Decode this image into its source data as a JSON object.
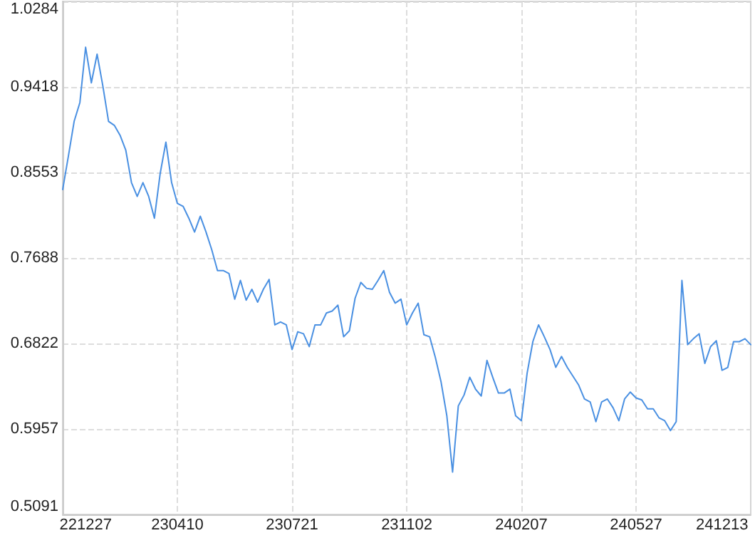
{
  "chart_data": {
    "type": "line",
    "color": "#4a90e2",
    "grid": true,
    "categories": [
      null,
      null,
      null,
      null,
      "221227",
      null,
      null,
      null,
      null,
      null,
      null,
      null,
      null,
      null,
      null,
      null,
      null,
      null,
      null,
      null,
      "230410",
      null,
      null,
      null,
      null,
      null,
      null,
      null,
      null,
      null,
      null,
      null,
      null,
      null,
      null,
      null,
      null,
      null,
      null,
      null,
      "230721",
      null,
      null,
      null,
      null,
      null,
      null,
      null,
      null,
      null,
      null,
      null,
      null,
      null,
      null,
      null,
      null,
      null,
      null,
      null,
      "231102",
      null,
      null,
      null,
      null,
      null,
      null,
      null,
      null,
      null,
      null,
      null,
      null,
      null,
      null,
      null,
      null,
      null,
      null,
      null,
      "240207",
      null,
      null,
      null,
      null,
      null,
      null,
      null,
      null,
      null,
      null,
      null,
      null,
      null,
      null,
      null,
      null,
      null,
      null,
      null,
      "240527",
      null,
      null,
      null,
      null,
      null,
      null,
      null,
      null,
      null,
      null,
      null,
      null,
      null,
      null,
      "241213",
      null,
      null,
      null,
      null,
      null
    ],
    "values": [
      0.838,
      0.872,
      0.907,
      0.926,
      0.982,
      0.946,
      0.975,
      0.943,
      0.907,
      0.903,
      0.893,
      0.878,
      0.845,
      0.831,
      0.845,
      0.831,
      0.809,
      0.854,
      0.886,
      0.845,
      0.824,
      0.821,
      0.809,
      0.795,
      0.811,
      0.795,
      0.777,
      0.756,
      0.756,
      0.753,
      0.727,
      0.746,
      0.726,
      0.737,
      0.724,
      0.737,
      0.747,
      0.701,
      0.704,
      0.701,
      0.676,
      0.694,
      0.692,
      0.679,
      0.701,
      0.701,
      0.713,
      0.715,
      0.721,
      0.689,
      0.695,
      0.728,
      0.744,
      0.738,
      0.737,
      0.746,
      0.756,
      0.734,
      0.723,
      0.727,
      0.701,
      0.713,
      0.723,
      0.691,
      0.689,
      0.668,
      0.643,
      0.609,
      0.552,
      0.619,
      0.63,
      0.648,
      0.636,
      0.629,
      0.665,
      0.648,
      0.632,
      0.632,
      0.636,
      0.609,
      0.604,
      0.652,
      0.684,
      0.701,
      0.689,
      0.676,
      0.658,
      0.669,
      0.658,
      0.649,
      0.64,
      0.626,
      0.623,
      0.603,
      0.623,
      0.626,
      0.617,
      0.604,
      0.626,
      0.633,
      0.627,
      0.625,
      0.616,
      0.616,
      0.607,
      0.604,
      0.594,
      0.603,
      0.746,
      0.681,
      0.687,
      0.692,
      0.662,
      0.679,
      0.685,
      0.655,
      0.658,
      0.684,
      0.684,
      0.687,
      0.681
    ],
    "ylim": [
      0.5091,
      1.0284
    ],
    "yticks": [
      0.5091,
      0.5957,
      0.6822,
      0.7688,
      0.8553,
      0.9418,
      1.0284
    ]
  }
}
